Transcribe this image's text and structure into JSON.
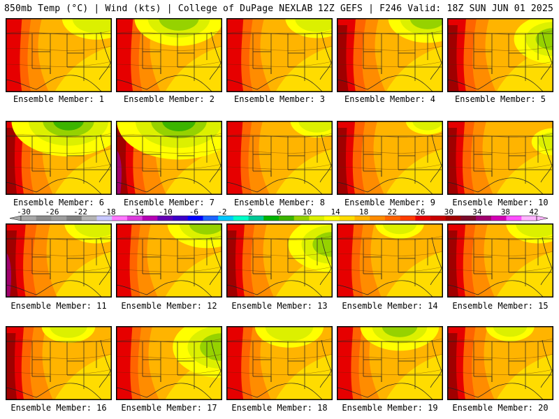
{
  "header": {
    "left": "850mb Temp (°C) | Wind (kts) | College of DuPage NEXLAB",
    "right": "12Z GEFS | F246 Valid: 18Z SUN JUN 01 2025"
  },
  "members": [
    {
      "label": "Ensemble Member: 1",
      "heat": 0.55,
      "cool": 0.35,
      "cool_pos": "northeast"
    },
    {
      "label": "Ensemble Member: 2",
      "heat": 0.6,
      "cool": 0.55,
      "cool_pos": "north"
    },
    {
      "label": "Ensemble Member: 3",
      "heat": 0.6,
      "cool": 0.3,
      "cool_pos": "northeast"
    },
    {
      "label": "Ensemble Member: 4",
      "heat": 0.75,
      "cool": 0.45,
      "cool_pos": "northeast"
    },
    {
      "label": "Ensemble Member: 5",
      "heat": 0.75,
      "cool": 0.45,
      "cool_pos": "east"
    },
    {
      "label": "Ensemble Member: 6",
      "heat": 0.7,
      "cool": 0.8,
      "cool_pos": "north"
    },
    {
      "label": "Ensemble Member: 7",
      "heat": 0.8,
      "cool": 0.9,
      "cool_pos": "north"
    },
    {
      "label": "Ensemble Member: 8",
      "heat": 0.55,
      "cool": 0.2,
      "cool_pos": "northeast"
    },
    {
      "label": "Ensemble Member: 9",
      "heat": 0.7,
      "cool": 0.1,
      "cool_pos": "northeast"
    },
    {
      "label": "Ensemble Member: 10",
      "heat": 0.65,
      "cool": 0.1,
      "cool_pos": "east"
    },
    {
      "label": "Ensemble Member: 11",
      "heat": 0.85,
      "cool": 0.3,
      "cool_pos": "northeast"
    },
    {
      "label": "Ensemble Member: 12",
      "heat": 0.5,
      "cool": 0.45,
      "cool_pos": "northeast"
    },
    {
      "label": "Ensemble Member: 13",
      "heat": 0.7,
      "cool": 0.55,
      "cool_pos": "east"
    },
    {
      "label": "Ensemble Member: 14",
      "heat": 0.6,
      "cool": 0.15,
      "cool_pos": "north"
    },
    {
      "label": "Ensemble Member: 15",
      "heat": 0.7,
      "cool": 0.3,
      "cool_pos": "northeast"
    },
    {
      "label": "Ensemble Member: 16",
      "heat": 0.7,
      "cool": 0.2,
      "cool_pos": "north"
    },
    {
      "label": "Ensemble Member: 17",
      "heat": 0.55,
      "cool": 0.65,
      "cool_pos": "east"
    },
    {
      "label": "Ensemble Member: 18",
      "heat": 0.6,
      "cool": 0.35,
      "cool_pos": "north"
    },
    {
      "label": "Ensemble Member: 19",
      "heat": 0.55,
      "cool": 0.45,
      "cool_pos": "north"
    },
    {
      "label": "Ensemble Member: 20",
      "heat": 0.7,
      "cool": 0.15,
      "cool_pos": "north"
    }
  ],
  "colorbar": {
    "labels": [
      "-30",
      "-26",
      "-22",
      "-18",
      "-14",
      "-10",
      "-6",
      "-2",
      "2",
      "6",
      "10",
      "14",
      "18",
      "22",
      "26",
      "30",
      "34",
      "38",
      "42"
    ],
    "colors": [
      "#a9a9a9",
      "#8c8c8c",
      "#9e9e9e",
      "#828282",
      "#b4b4b4",
      "#c8c8ff",
      "#ff78ff",
      "#dc3cdc",
      "#b400b4",
      "#6400b4",
      "#3c00c8",
      "#0000ff",
      "#1e64ff",
      "#00c8ff",
      "#00ffc8",
      "#00c896",
      "#00b400",
      "#3cb400",
      "#96d200",
      "#dcf000",
      "#ffff00",
      "#ffdc00",
      "#ffb400",
      "#ff8c00",
      "#ff6400",
      "#ff3c00",
      "#e60000",
      "#c80000",
      "#a00000",
      "#7a0a2a",
      "#a0006e",
      "#d200b4",
      "#ff50ff",
      "#ffb4ff"
    ]
  }
}
